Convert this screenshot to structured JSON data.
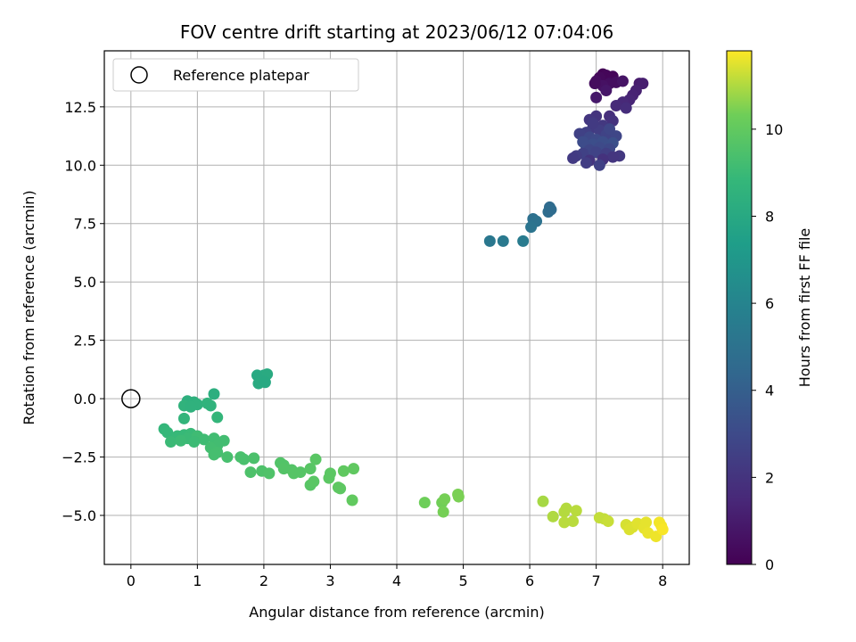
{
  "chart_data": {
    "type": "scatter",
    "title": "FOV centre drift starting at 2023/06/12 07:04:06",
    "xlabel": "Angular distance from reference (arcmin)",
    "ylabel": "Rotation from reference (arcmin)",
    "xlim": [
      -0.4,
      8.4
    ],
    "ylim": [
      -7.1,
      14.9
    ],
    "xticks": [
      0,
      1,
      2,
      3,
      4,
      5,
      6,
      7,
      8
    ],
    "xtick_labels": [
      "0",
      "1",
      "2",
      "3",
      "4",
      "5",
      "6",
      "7",
      "8"
    ],
    "yticks": [
      -5.0,
      -2.5,
      0.0,
      2.5,
      5.0,
      7.5,
      10.0,
      12.5
    ],
    "ytick_labels": [
      "−5.0",
      "−2.5",
      "0.0",
      "2.5",
      "5.0",
      "7.5",
      "10.0",
      "12.5"
    ],
    "grid": true,
    "colormap": "viridis",
    "colorbar": {
      "label": "Hours from first FF file",
      "range": [
        0,
        11.8
      ],
      "ticks": [
        0,
        2,
        4,
        6,
        8,
        10
      ],
      "tick_labels": [
        "0",
        "2",
        "4",
        "6",
        "8",
        "10"
      ]
    },
    "legend": {
      "placement": "top-left",
      "entries": [
        "Reference platepar"
      ]
    },
    "reference_marker": {
      "x": 0,
      "y": 0,
      "label": "Reference platepar"
    },
    "points": [
      {
        "x": 7.1,
        "y": 13.9,
        "t": 0.1
      },
      {
        "x": 7.15,
        "y": 13.85,
        "t": 0.2
      },
      {
        "x": 7.05,
        "y": 13.75,
        "t": 0.3
      },
      {
        "x": 7.25,
        "y": 13.8,
        "t": 0.2
      },
      {
        "x": 7.0,
        "y": 13.6,
        "t": 0.4
      },
      {
        "x": 7.2,
        "y": 13.5,
        "t": 0.5
      },
      {
        "x": 7.1,
        "y": 13.4,
        "t": 0.6
      },
      {
        "x": 7.3,
        "y": 13.55,
        "t": 0.5
      },
      {
        "x": 7.4,
        "y": 13.6,
        "t": 0.7
      },
      {
        "x": 6.98,
        "y": 13.5,
        "t": 0.4
      },
      {
        "x": 7.15,
        "y": 13.2,
        "t": 0.8
      },
      {
        "x": 7.0,
        "y": 12.9,
        "t": 0.9
      },
      {
        "x": 7.65,
        "y": 13.5,
        "t": 1.0
      },
      {
        "x": 7.7,
        "y": 13.5,
        "t": 1.1
      },
      {
        "x": 7.6,
        "y": 13.2,
        "t": 1.2
      },
      {
        "x": 7.55,
        "y": 13.0,
        "t": 1.3
      },
      {
        "x": 7.5,
        "y": 12.8,
        "t": 1.4
      },
      {
        "x": 7.4,
        "y": 12.7,
        "t": 1.5
      },
      {
        "x": 7.3,
        "y": 12.55,
        "t": 1.6
      },
      {
        "x": 7.45,
        "y": 12.45,
        "t": 1.7
      },
      {
        "x": 7.2,
        "y": 12.1,
        "t": 1.8
      },
      {
        "x": 7.25,
        "y": 11.9,
        "t": 1.9
      },
      {
        "x": 7.0,
        "y": 12.1,
        "t": 2.0
      },
      {
        "x": 6.9,
        "y": 11.95,
        "t": 2.1
      },
      {
        "x": 7.1,
        "y": 11.7,
        "t": 2.2
      },
      {
        "x": 6.95,
        "y": 11.6,
        "t": 2.3
      },
      {
        "x": 7.05,
        "y": 11.5,
        "t": 2.4
      },
      {
        "x": 6.85,
        "y": 11.4,
        "t": 2.5
      },
      {
        "x": 6.75,
        "y": 11.35,
        "t": 2.6
      },
      {
        "x": 7.15,
        "y": 11.3,
        "t": 2.7
      },
      {
        "x": 7.3,
        "y": 11.25,
        "t": 2.8
      },
      {
        "x": 6.9,
        "y": 11.2,
        "t": 2.9
      },
      {
        "x": 7.0,
        "y": 11.1,
        "t": 3.0
      },
      {
        "x": 6.8,
        "y": 11.0,
        "t": 3.1
      },
      {
        "x": 7.1,
        "y": 11.0,
        "t": 3.2
      },
      {
        "x": 7.25,
        "y": 10.95,
        "t": 3.3
      },
      {
        "x": 6.95,
        "y": 10.9,
        "t": 3.2
      },
      {
        "x": 6.85,
        "y": 10.8,
        "t": 3.1
      },
      {
        "x": 7.05,
        "y": 10.75,
        "t": 3.0
      },
      {
        "x": 7.2,
        "y": 10.7,
        "t": 2.9
      },
      {
        "x": 6.9,
        "y": 10.65,
        "t": 2.8
      },
      {
        "x": 7.0,
        "y": 10.55,
        "t": 2.7
      },
      {
        "x": 6.8,
        "y": 10.5,
        "t": 2.6
      },
      {
        "x": 7.15,
        "y": 10.5,
        "t": 2.5
      },
      {
        "x": 6.7,
        "y": 10.4,
        "t": 2.4
      },
      {
        "x": 6.65,
        "y": 10.3,
        "t": 2.3
      },
      {
        "x": 7.35,
        "y": 10.4,
        "t": 2.2
      },
      {
        "x": 7.25,
        "y": 10.35,
        "t": 2.1
      },
      {
        "x": 6.9,
        "y": 10.2,
        "t": 2.0
      },
      {
        "x": 7.1,
        "y": 10.25,
        "t": 1.9
      },
      {
        "x": 6.85,
        "y": 10.1,
        "t": 2.4
      },
      {
        "x": 7.05,
        "y": 10.0,
        "t": 2.6
      },
      {
        "x": 7.2,
        "y": 11.55,
        "t": 2.8
      },
      {
        "x": 6.95,
        "y": 11.8,
        "t": 2.3
      },
      {
        "x": 6.3,
        "y": 8.2,
        "t": 4.6
      },
      {
        "x": 6.28,
        "y": 8.0,
        "t": 4.7
      },
      {
        "x": 6.32,
        "y": 8.1,
        "t": 4.65
      },
      {
        "x": 6.05,
        "y": 7.7,
        "t": 4.9
      },
      {
        "x": 6.1,
        "y": 7.6,
        "t": 5.0
      },
      {
        "x": 6.02,
        "y": 7.35,
        "t": 5.1
      },
      {
        "x": 5.4,
        "y": 6.75,
        "t": 5.3
      },
      {
        "x": 5.6,
        "y": 6.75,
        "t": 5.4
      },
      {
        "x": 5.9,
        "y": 6.75,
        "t": 5.5
      },
      {
        "x": 1.9,
        "y": 1.0,
        "t": 8.0
      },
      {
        "x": 2.0,
        "y": 1.0,
        "t": 8.0
      },
      {
        "x": 2.05,
        "y": 1.05,
        "t": 8.1
      },
      {
        "x": 1.95,
        "y": 0.8,
        "t": 8.05
      },
      {
        "x": 1.92,
        "y": 0.65,
        "t": 8.1
      },
      {
        "x": 2.02,
        "y": 0.7,
        "t": 8.0
      },
      {
        "x": 1.25,
        "y": 0.2,
        "t": 8.3
      },
      {
        "x": 0.85,
        "y": -0.1,
        "t": 8.4
      },
      {
        "x": 0.95,
        "y": -0.15,
        "t": 8.45
      },
      {
        "x": 1.0,
        "y": -0.25,
        "t": 8.5
      },
      {
        "x": 0.8,
        "y": -0.3,
        "t": 8.55
      },
      {
        "x": 0.9,
        "y": -0.35,
        "t": 8.5
      },
      {
        "x": 1.15,
        "y": -0.2,
        "t": 8.6
      },
      {
        "x": 1.2,
        "y": -0.3,
        "t": 8.55
      },
      {
        "x": 0.8,
        "y": -0.85,
        "t": 8.7
      },
      {
        "x": 1.3,
        "y": -0.8,
        "t": 8.75
      },
      {
        "x": 0.5,
        "y": -1.3,
        "t": 8.8
      },
      {
        "x": 0.55,
        "y": -1.45,
        "t": 8.85
      },
      {
        "x": 0.7,
        "y": -1.6,
        "t": 8.9
      },
      {
        "x": 0.8,
        "y": -1.55,
        "t": 8.9
      },
      {
        "x": 0.9,
        "y": -1.5,
        "t": 8.95
      },
      {
        "x": 0.85,
        "y": -1.7,
        "t": 9.0
      },
      {
        "x": 0.6,
        "y": -1.85,
        "t": 9.0
      },
      {
        "x": 0.75,
        "y": -1.8,
        "t": 9.05
      },
      {
        "x": 1.0,
        "y": -1.6,
        "t": 9.1
      },
      {
        "x": 1.1,
        "y": -1.75,
        "t": 9.1
      },
      {
        "x": 1.25,
        "y": -1.7,
        "t": 9.15
      },
      {
        "x": 1.4,
        "y": -1.8,
        "t": 9.2
      },
      {
        "x": 0.95,
        "y": -1.85,
        "t": 9.05
      },
      {
        "x": 1.3,
        "y": -2.0,
        "t": 9.2
      },
      {
        "x": 1.2,
        "y": -2.1,
        "t": 9.25
      },
      {
        "x": 1.3,
        "y": -2.3,
        "t": 9.3
      },
      {
        "x": 1.25,
        "y": -2.4,
        "t": 9.3
      },
      {
        "x": 1.45,
        "y": -2.5,
        "t": 9.35
      },
      {
        "x": 1.65,
        "y": -2.5,
        "t": 9.4
      },
      {
        "x": 1.7,
        "y": -2.6,
        "t": 9.4
      },
      {
        "x": 1.85,
        "y": -2.55,
        "t": 9.45
      },
      {
        "x": 1.8,
        "y": -3.15,
        "t": 9.5
      },
      {
        "x": 1.97,
        "y": -3.1,
        "t": 9.5
      },
      {
        "x": 2.08,
        "y": -3.2,
        "t": 9.55
      },
      {
        "x": 2.25,
        "y": -2.75,
        "t": 9.6
      },
      {
        "x": 2.3,
        "y": -2.85,
        "t": 9.6
      },
      {
        "x": 2.3,
        "y": -3.0,
        "t": 9.65
      },
      {
        "x": 2.42,
        "y": -3.05,
        "t": 9.65
      },
      {
        "x": 2.45,
        "y": -3.2,
        "t": 9.7
      },
      {
        "x": 2.55,
        "y": -3.15,
        "t": 9.7
      },
      {
        "x": 2.7,
        "y": -3.0,
        "t": 9.75
      },
      {
        "x": 2.7,
        "y": -3.7,
        "t": 9.75
      },
      {
        "x": 2.75,
        "y": -3.55,
        "t": 9.8
      },
      {
        "x": 2.78,
        "y": -2.6,
        "t": 9.8
      },
      {
        "x": 3.0,
        "y": -3.2,
        "t": 9.85
      },
      {
        "x": 2.98,
        "y": -3.4,
        "t": 9.85
      },
      {
        "x": 3.15,
        "y": -3.85,
        "t": 9.9
      },
      {
        "x": 3.12,
        "y": -3.8,
        "t": 9.9
      },
      {
        "x": 3.2,
        "y": -3.1,
        "t": 9.95
      },
      {
        "x": 3.35,
        "y": -3.0,
        "t": 9.95
      },
      {
        "x": 3.33,
        "y": -4.35,
        "t": 10.0
      },
      {
        "x": 4.42,
        "y": -4.45,
        "t": 10.3
      },
      {
        "x": 4.68,
        "y": -4.45,
        "t": 10.35
      },
      {
        "x": 4.72,
        "y": -4.3,
        "t": 10.4
      },
      {
        "x": 4.7,
        "y": -4.85,
        "t": 10.4
      },
      {
        "x": 4.92,
        "y": -4.1,
        "t": 10.45
      },
      {
        "x": 4.93,
        "y": -4.2,
        "t": 10.45
      },
      {
        "x": 6.2,
        "y": -4.4,
        "t": 10.9
      },
      {
        "x": 6.35,
        "y": -5.05,
        "t": 11.0
      },
      {
        "x": 6.52,
        "y": -4.85,
        "t": 11.05
      },
      {
        "x": 6.55,
        "y": -4.7,
        "t": 11.05
      },
      {
        "x": 6.52,
        "y": -5.3,
        "t": 11.1
      },
      {
        "x": 6.65,
        "y": -5.25,
        "t": 11.1
      },
      {
        "x": 6.7,
        "y": -4.8,
        "t": 11.1
      },
      {
        "x": 7.05,
        "y": -5.1,
        "t": 11.2
      },
      {
        "x": 7.12,
        "y": -5.15,
        "t": 11.2
      },
      {
        "x": 7.18,
        "y": -5.25,
        "t": 11.25
      },
      {
        "x": 7.45,
        "y": -5.4,
        "t": 11.4
      },
      {
        "x": 7.5,
        "y": -5.6,
        "t": 11.45
      },
      {
        "x": 7.55,
        "y": -5.5,
        "t": 11.45
      },
      {
        "x": 7.62,
        "y": -5.35,
        "t": 11.5
      },
      {
        "x": 7.72,
        "y": -5.55,
        "t": 11.55
      },
      {
        "x": 7.75,
        "y": -5.3,
        "t": 11.55
      },
      {
        "x": 7.78,
        "y": -5.75,
        "t": 11.6
      },
      {
        "x": 7.9,
        "y": -5.9,
        "t": 11.65
      },
      {
        "x": 7.95,
        "y": -5.3,
        "t": 11.7
      },
      {
        "x": 7.98,
        "y": -5.45,
        "t": 11.7
      },
      {
        "x": 8.0,
        "y": -5.6,
        "t": 11.75
      }
    ]
  }
}
